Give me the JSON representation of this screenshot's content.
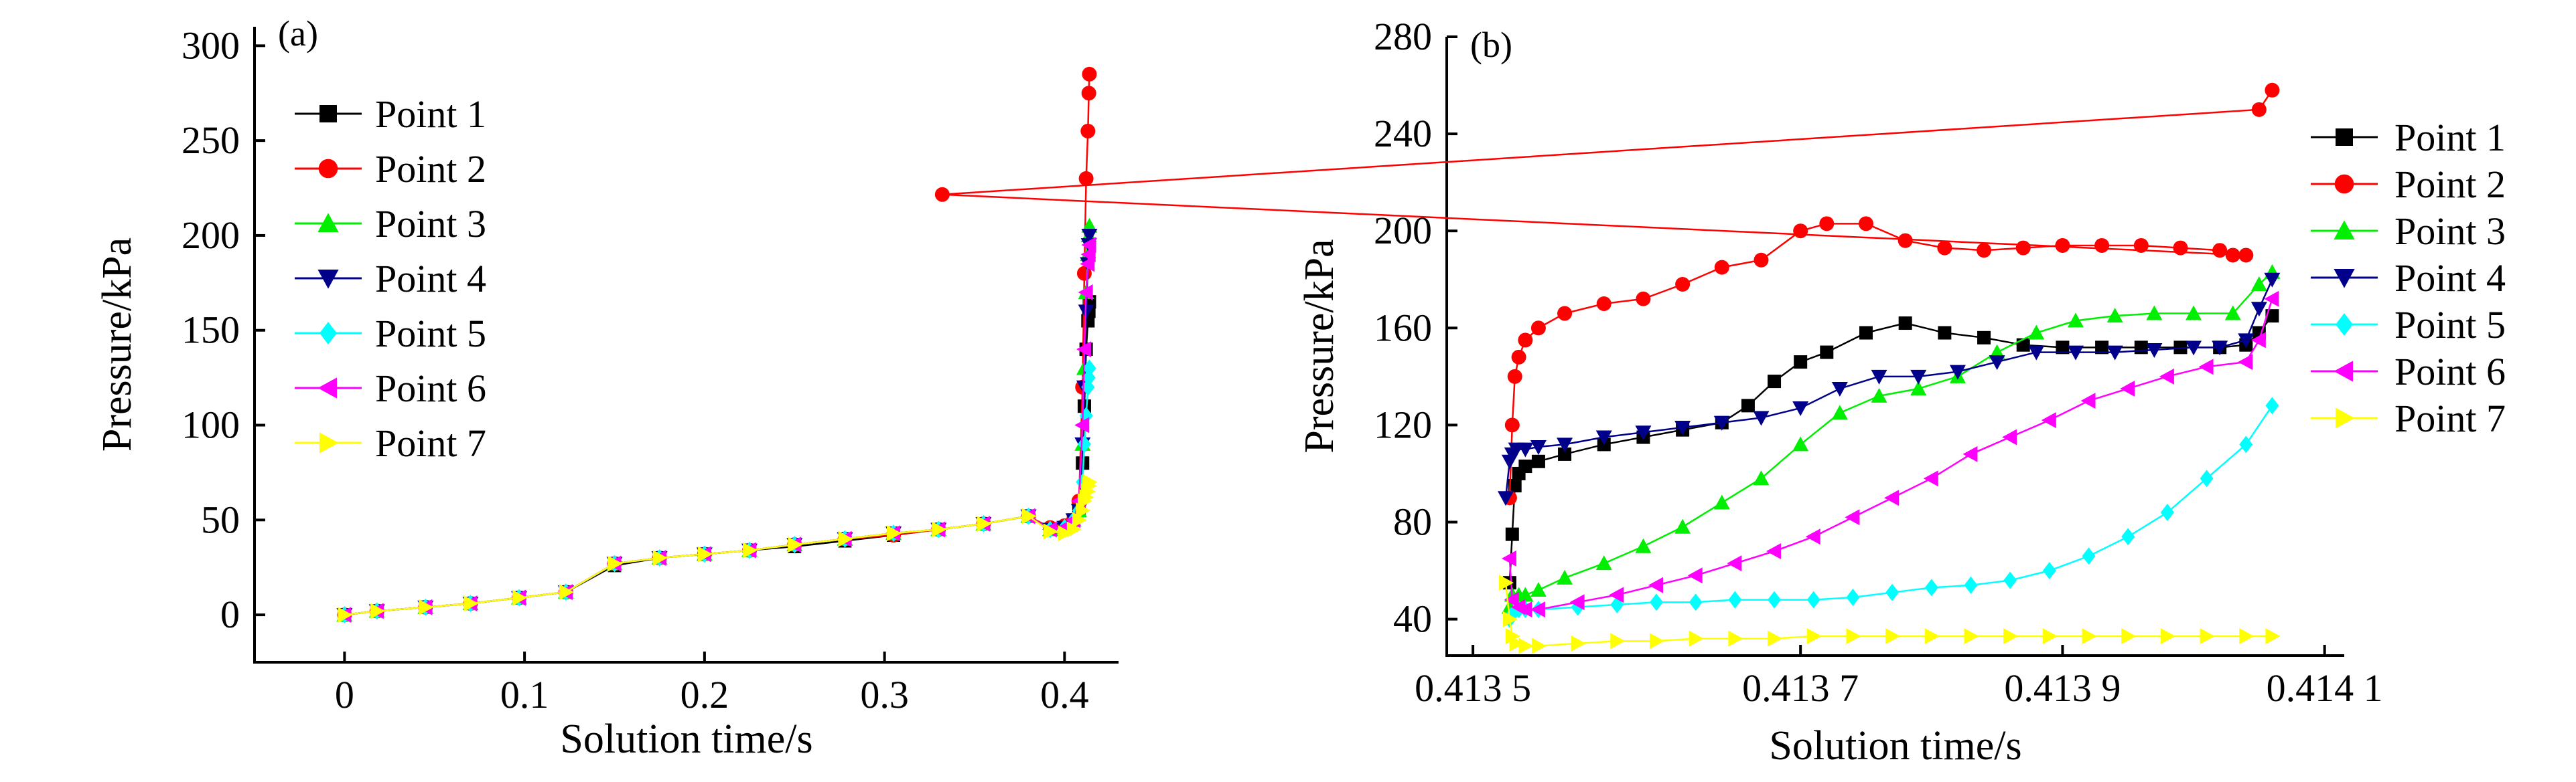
{
  "chart_data": [
    {
      "panel_label": "(a)",
      "type": "line",
      "xlabel": "Solution time/s",
      "ylabel": "Pressure/kPa",
      "xlim": [
        -0.05,
        0.43
      ],
      "ylim": [
        -25,
        310
      ],
      "xticks": [
        {
          "v": 0,
          "t": "0"
        },
        {
          "v": 0.1,
          "t": "0.1"
        },
        {
          "v": 0.2,
          "t": "0.2"
        },
        {
          "v": 0.3,
          "t": "0.3"
        },
        {
          "v": 0.4,
          "t": "0.4"
        }
      ],
      "yticks": [
        {
          "v": 0,
          "t": "0"
        },
        {
          "v": 50,
          "t": "50"
        },
        {
          "v": 100,
          "t": "100"
        },
        {
          "v": 150,
          "t": "150"
        },
        {
          "v": 200,
          "t": "200"
        },
        {
          "v": 250,
          "t": "250"
        },
        {
          "v": 300,
          "t": "300"
        }
      ],
      "legend_position": "top-left",
      "series": [
        {
          "name": "Point 1",
          "color": "#000000",
          "marker": "square",
          "x": [
            0,
            0.018,
            0.045,
            0.07,
            0.097,
            0.123,
            0.15,
            0.175,
            0.2,
            0.225,
            0.25,
            0.278,
            0.305,
            0.33,
            0.355,
            0.38,
            0.392,
            0.4,
            0.405,
            0.408,
            0.41,
            0.411,
            0.412,
            0.413,
            0.4135,
            0.4138
          ],
          "y": [
            0,
            2,
            4,
            6,
            9,
            12,
            26,
            30,
            32,
            34,
            36,
            39,
            42,
            45,
            48,
            52,
            45,
            46,
            50,
            55,
            80,
            110,
            140,
            155,
            160,
            165
          ]
        },
        {
          "name": "Point 2",
          "color": "#ff0000",
          "marker": "circle",
          "x": [
            0,
            0.018,
            0.045,
            0.07,
            0.097,
            0.123,
            0.15,
            0.175,
            0.2,
            0.225,
            0.25,
            0.278,
            0.305,
            0.33,
            0.355,
            0.38,
            0.392,
            0.4,
            0.405,
            0.408,
            0.41,
            0.411,
            0.412,
            0.413,
            0.4135,
            0.4138
          ],
          "y": [
            0,
            2,
            4,
            6,
            9,
            12,
            27,
            30,
            32,
            34,
            37,
            40,
            42,
            45,
            48,
            52,
            46,
            47,
            50,
            60,
            120,
            180,
            230,
            255,
            275,
            285
          ]
        },
        {
          "name": "Point 3",
          "color": "#00ee00",
          "marker": "triangle-up",
          "x": [
            0,
            0.018,
            0.045,
            0.07,
            0.097,
            0.123,
            0.15,
            0.175,
            0.2,
            0.225,
            0.25,
            0.278,
            0.305,
            0.33,
            0.355,
            0.38,
            0.392,
            0.4,
            0.405,
            0.408,
            0.41,
            0.411,
            0.412,
            0.413,
            0.4135,
            0.4138
          ],
          "y": [
            0,
            2,
            4,
            6,
            9,
            12,
            27,
            30,
            32,
            34,
            37,
            40,
            43,
            45,
            48,
            52,
            45,
            46,
            50,
            55,
            90,
            130,
            170,
            190,
            200,
            205
          ]
        },
        {
          "name": "Point 4",
          "color": "#00008b",
          "marker": "triangle-down",
          "x": [
            0,
            0.018,
            0.045,
            0.07,
            0.097,
            0.123,
            0.15,
            0.175,
            0.2,
            0.225,
            0.25,
            0.278,
            0.305,
            0.33,
            0.355,
            0.38,
            0.392,
            0.4,
            0.405,
            0.408,
            0.41,
            0.411,
            0.412,
            0.413,
            0.4135,
            0.4138
          ],
          "y": [
            0,
            2,
            4,
            6,
            9,
            12,
            27,
            30,
            32,
            34,
            37,
            40,
            43,
            45,
            48,
            52,
            45,
            46,
            50,
            55,
            90,
            120,
            160,
            185,
            195,
            200
          ]
        },
        {
          "name": "Point 5",
          "color": "#00ffff",
          "marker": "diamond",
          "x": [
            0,
            0.018,
            0.045,
            0.07,
            0.097,
            0.123,
            0.15,
            0.175,
            0.2,
            0.225,
            0.25,
            0.278,
            0.305,
            0.33,
            0.355,
            0.38,
            0.392,
            0.4,
            0.405,
            0.408,
            0.41,
            0.411,
            0.412,
            0.413,
            0.4135,
            0.4138
          ],
          "y": [
            0,
            2,
            4,
            6,
            9,
            12,
            27,
            30,
            32,
            34,
            37,
            40,
            43,
            45,
            48,
            52,
            45,
            46,
            50,
            55,
            70,
            90,
            105,
            120,
            125,
            130
          ]
        },
        {
          "name": "Point 6",
          "color": "#ff00ff",
          "marker": "triangle-left",
          "x": [
            0,
            0.018,
            0.045,
            0.07,
            0.097,
            0.123,
            0.15,
            0.175,
            0.2,
            0.225,
            0.25,
            0.278,
            0.305,
            0.33,
            0.355,
            0.38,
            0.392,
            0.4,
            0.405,
            0.408,
            0.41,
            0.411,
            0.412,
            0.413,
            0.4135,
            0.4138
          ],
          "y": [
            0,
            2,
            4,
            6,
            9,
            12,
            27,
            30,
            32,
            34,
            37,
            40,
            43,
            45,
            48,
            52,
            45,
            46,
            50,
            60,
            100,
            140,
            170,
            185,
            190,
            195
          ]
        },
        {
          "name": "Point 7",
          "color": "#ffff00",
          "marker": "triangle-right",
          "x": [
            0,
            0.018,
            0.045,
            0.07,
            0.097,
            0.123,
            0.15,
            0.175,
            0.2,
            0.225,
            0.25,
            0.278,
            0.305,
            0.33,
            0.355,
            0.38,
            0.392,
            0.4,
            0.405,
            0.408,
            0.41,
            0.411,
            0.412,
            0.413,
            0.4135,
            0.4138
          ],
          "y": [
            0,
            2,
            4,
            6,
            9,
            12,
            27,
            30,
            32,
            34,
            37,
            40,
            43,
            45,
            48,
            52,
            44,
            43,
            45,
            50,
            55,
            60,
            62,
            65,
            68,
            70
          ]
        }
      ]
    },
    {
      "panel_label": "(b)",
      "type": "line",
      "xlabel": "Solution time/s",
      "ylabel": "Pressure/kPa",
      "xlim": [
        0.41343,
        0.414115
      ],
      "ylim": [
        25,
        280
      ],
      "xticks": [
        {
          "v": 0.41345,
          "t": "0.413 5"
        },
        {
          "v": 0.4137,
          "t": "0.413 7"
        },
        {
          "v": 0.4139,
          "t": "0.413 9"
        },
        {
          "v": 0.4141,
          "t": "0.414 1"
        }
      ],
      "yticks": [
        {
          "v": 40,
          "t": "40"
        },
        {
          "v": 80,
          "t": "80"
        },
        {
          "v": 120,
          "t": "120"
        },
        {
          "v": 160,
          "t": "160"
        },
        {
          "v": 200,
          "t": "200"
        },
        {
          "v": 240,
          "t": "240"
        },
        {
          "v": 280,
          "t": "280"
        }
      ],
      "legend_position": "right",
      "series": [
        {
          "name": "Point 1",
          "color": "#000000",
          "marker": "square",
          "x": [
            0.413478,
            0.41348,
            0.413482,
            0.413485,
            0.41349,
            0.4135,
            0.41352,
            0.41355,
            0.41358,
            0.41361,
            0.41364,
            0.41366,
            0.41368,
            0.4137,
            0.41372,
            0.41375,
            0.41378,
            0.41381,
            0.41384,
            0.41387,
            0.4139,
            0.41393,
            0.41396,
            0.41399,
            0.41402,
            0.41404,
            0.41405,
            0.41406
          ],
          "y": [
            55,
            75,
            95,
            100,
            103,
            105,
            108,
            112,
            115,
            118,
            121,
            128,
            138,
            146,
            150,
            158,
            162,
            158,
            156,
            153,
            152,
            152,
            152,
            152,
            152,
            153,
            158,
            165
          ]
        },
        {
          "name": "Point 2",
          "color": "#ff0000",
          "marker": "circle",
          "x": [
            0.413478,
            0.41348,
            0.413482,
            0.413485,
            0.41349,
            0.4135,
            0.41352,
            0.41355,
            0.41358,
            0.41361,
            0.41364,
            0.41367,
            0.4137,
            0.41372,
            0.41375,
            0.41378,
            0.41381,
            0.41384,
            0.41387,
            0.4139,
            0.41393,
            0.41396,
            0.41399,
            0.41402,
            0.41403,
            0.41404,
            0.413045,
            0.41405,
            0.41406
          ],
          "y": [
            90,
            120,
            140,
            148,
            155,
            160,
            166,
            170,
            172,
            178,
            185,
            188,
            200,
            203,
            203,
            196,
            193,
            192,
            193,
            194,
            194,
            194,
            193,
            192,
            190,
            190,
            215,
            250,
            258
          ]
        },
        {
          "name": "Point 3",
          "color": "#00ee00",
          "marker": "triangle-up",
          "x": [
            0.413478,
            0.41348,
            0.413485,
            0.41349,
            0.4135,
            0.41352,
            0.41355,
            0.41358,
            0.41361,
            0.41364,
            0.41367,
            0.4137,
            0.41373,
            0.41376,
            0.41379,
            0.41382,
            0.41385,
            0.41388,
            0.41391,
            0.41394,
            0.41397,
            0.414,
            0.41403,
            0.41405,
            0.41406
          ],
          "y": [
            45,
            50,
            50,
            50,
            52,
            57,
            63,
            70,
            78,
            88,
            98,
            112,
            125,
            132,
            135,
            140,
            150,
            158,
            163,
            165,
            166,
            166,
            166,
            178,
            183
          ]
        },
        {
          "name": "Point 4",
          "color": "#00008b",
          "marker": "triangle-down",
          "x": [
            0.413475,
            0.413478,
            0.41348,
            0.413483,
            0.41349,
            0.4135,
            0.41352,
            0.41355,
            0.41358,
            0.41361,
            0.41364,
            0.41367,
            0.4137,
            0.41373,
            0.41376,
            0.41379,
            0.41382,
            0.41385,
            0.41388,
            0.41391,
            0.41394,
            0.41397,
            0.414,
            0.41402,
            0.41404,
            0.41405,
            0.41406
          ],
          "y": [
            90,
            105,
            108,
            110,
            110,
            111,
            112,
            115,
            117,
            119,
            121,
            123,
            127,
            135,
            140,
            140,
            142,
            146,
            150,
            150,
            150,
            151,
            152,
            152,
            155,
            168,
            180
          ]
        },
        {
          "name": "Point 5",
          "color": "#00ffff",
          "marker": "diamond",
          "x": [
            0.413478,
            0.41348,
            0.413485,
            0.41349,
            0.4135,
            0.41353,
            0.41356,
            0.41359,
            0.41362,
            0.41365,
            0.41368,
            0.41371,
            0.41374,
            0.41377,
            0.4138,
            0.41383,
            0.41386,
            0.41389,
            0.41392,
            0.41395,
            0.41398,
            0.41401,
            0.41404,
            0.41406
          ],
          "y": [
            40,
            42,
            44,
            44,
            44,
            45,
            46,
            47,
            47,
            48,
            48,
            48,
            49,
            51,
            53,
            54,
            56,
            60,
            66,
            74,
            84,
            98,
            112,
            128
          ]
        },
        {
          "name": "Point 6",
          "color": "#ff00ff",
          "marker": "triangle-left",
          "x": [
            0.413478,
            0.41348,
            0.413485,
            0.41349,
            0.4135,
            0.41353,
            0.41356,
            0.41359,
            0.41362,
            0.41365,
            0.41368,
            0.41371,
            0.41374,
            0.41377,
            0.4138,
            0.41383,
            0.41386,
            0.41389,
            0.41392,
            0.41395,
            0.41398,
            0.41401,
            0.41404,
            0.41405,
            0.41406
          ],
          "y": [
            65,
            48,
            45,
            44,
            44,
            47,
            50,
            54,
            58,
            63,
            68,
            74,
            82,
            90,
            98,
            108,
            115,
            122,
            130,
            135,
            140,
            144,
            146,
            155,
            172
          ]
        },
        {
          "name": "Point 7",
          "color": "#ffff00",
          "marker": "triangle-right",
          "x": [
            0.413475,
            0.413478,
            0.41348,
            0.413483,
            0.41349,
            0.4135,
            0.41353,
            0.41356,
            0.41359,
            0.41362,
            0.41365,
            0.41368,
            0.41371,
            0.41374,
            0.41377,
            0.4138,
            0.41383,
            0.41386,
            0.41389,
            0.41392,
            0.41395,
            0.41398,
            0.41401,
            0.41404,
            0.41406
          ],
          "y": [
            55,
            40,
            33,
            30,
            29,
            29,
            30,
            31,
            31,
            32,
            32,
            32,
            33,
            33,
            33,
            33,
            33,
            33,
            33,
            33,
            33,
            33,
            33,
            33,
            33
          ]
        }
      ]
    }
  ]
}
